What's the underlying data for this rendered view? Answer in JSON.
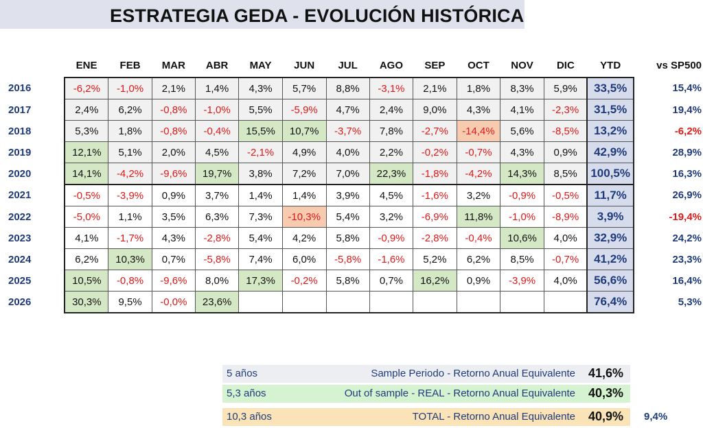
{
  "title": "ESTRATEGIA GEDA -  EVOLUCIÓN HISTÓRICA",
  "headers": [
    "ENE",
    "FEB",
    "MAR",
    "ABR",
    "MAY",
    "JUN",
    "JUL",
    "AGO",
    "SEP",
    "OCT",
    "NOV",
    "DIC",
    "YTD",
    "vs SP500"
  ],
  "rows": [
    {
      "year": "2016",
      "months": [
        "-6,2%",
        "-1,0%",
        "2,1%",
        "1,4%",
        "4,3%",
        "5,7%",
        "8,8%",
        "-3,1%",
        "2,1%",
        "1,8%",
        "8,3%",
        "5,9%"
      ],
      "ytd": "33,5%",
      "vs": "15,4%"
    },
    {
      "year": "2017",
      "months": [
        "2,4%",
        "6,2%",
        "-0,8%",
        "-1,0%",
        "5,5%",
        "-5,9%",
        "4,7%",
        "2,4%",
        "9,0%",
        "4,3%",
        "4,1%",
        "-2,3%"
      ],
      "ytd": "31,5%",
      "vs": "19,4%"
    },
    {
      "year": "2018",
      "months": [
        "5,3%",
        "1,8%",
        "-0,8%",
        "-0,4%",
        "15,5%",
        "10,7%",
        "-3,7%",
        "7,8%",
        "-2,7%",
        "-14,4%",
        "5,6%",
        "-8,5%"
      ],
      "ytd": "13,2%",
      "vs": "-6,2%"
    },
    {
      "year": "2019",
      "months": [
        "12,1%",
        "5,1%",
        "2,0%",
        "4,5%",
        "-2,1%",
        "4,9%",
        "4,0%",
        "2,2%",
        "-0,2%",
        "-0,7%",
        "4,3%",
        "0,9%"
      ],
      "ytd": "42,9%",
      "vs": "28,9%"
    },
    {
      "year": "2020",
      "months": [
        "14,1%",
        "-4,2%",
        "-9,6%",
        "19,7%",
        "3,8%",
        "7,2%",
        "7,0%",
        "22,3%",
        "-1,8%",
        "-4,2%",
        "14,3%",
        "8,5%"
      ],
      "ytd": "100,5%",
      "vs": "16,3%"
    },
    {
      "year": "2021",
      "months": [
        "-0,5%",
        "-3,9%",
        "0,9%",
        "3,7%",
        "1,4%",
        "1,4%",
        "3,9%",
        "4,5%",
        "-1,6%",
        "3,2%",
        "-0,9%",
        "-0,5%"
      ],
      "ytd": "11,7%",
      "vs": "26,9%"
    },
    {
      "year": "2022",
      "months": [
        "-5,0%",
        "1,1%",
        "3,5%",
        "6,3%",
        "7,3%",
        "-10,3%",
        "5,4%",
        "3,2%",
        "-6,9%",
        "11,8%",
        "-1,0%",
        "-8,9%"
      ],
      "ytd": "3,9%",
      "vs": "-19,4%"
    },
    {
      "year": "2023",
      "months": [
        "4,1%",
        "-1,7%",
        "4,3%",
        "-2,8%",
        "5,4%",
        "4,2%",
        "5,8%",
        "-0,9%",
        "-2,8%",
        "-0,4%",
        "10,6%",
        "4,0%"
      ],
      "ytd": "32,9%",
      "vs": "24,2%"
    },
    {
      "year": "2024",
      "months": [
        "6,2%",
        "10,3%",
        "0,7%",
        "-5,8%",
        "7,4%",
        "6,0%",
        "-5,8%",
        "-1,6%",
        "5,2%",
        "6,2%",
        "8,5%",
        "-0,7%"
      ],
      "ytd": "41,2%",
      "vs": "23,3%"
    },
    {
      "year": "2025",
      "months": [
        "10,5%",
        "-0,8%",
        "-9,6%",
        "8,0%",
        "17,3%",
        "-0,2%",
        "5,8%",
        "0,7%",
        "16,2%",
        "0,9%",
        "-3,9%",
        "4,0%"
      ],
      "ytd": "56,6%",
      "vs": "16,4%"
    },
    {
      "year": "2026",
      "months": [
        "30,3%",
        "9,5%",
        "-0,0%",
        "23,6%",
        "",
        "",
        "",
        "",
        "",
        "",
        "",
        ""
      ],
      "ytd": "76,4%",
      "vs": "5,3%"
    }
  ],
  "summary": [
    {
      "period": "5 años",
      "label": "Sample Periodo - Retorno Anual Equivalente",
      "value": "41,6%",
      "bg": "#eceef2"
    },
    {
      "period": "5,3 años",
      "label": "Out of sample - REAL - Retorno Anual Equivalente",
      "value": "40,3%",
      "bg": "#d5f3d0"
    },
    {
      "period": "10,3 años",
      "label": "TOTAL - Retorno Anual Equivalente",
      "value": "40,9%",
      "bg": "#fbe3b8",
      "extra": "9,4%"
    }
  ],
  "colors": {
    "highlight_green": "#d5e8c6",
    "highlight_orange": "#f7cbb0",
    "negative": "#e01818",
    "ytd_bg": "#d7dcec",
    "year_text": "#1f3a7a"
  }
}
